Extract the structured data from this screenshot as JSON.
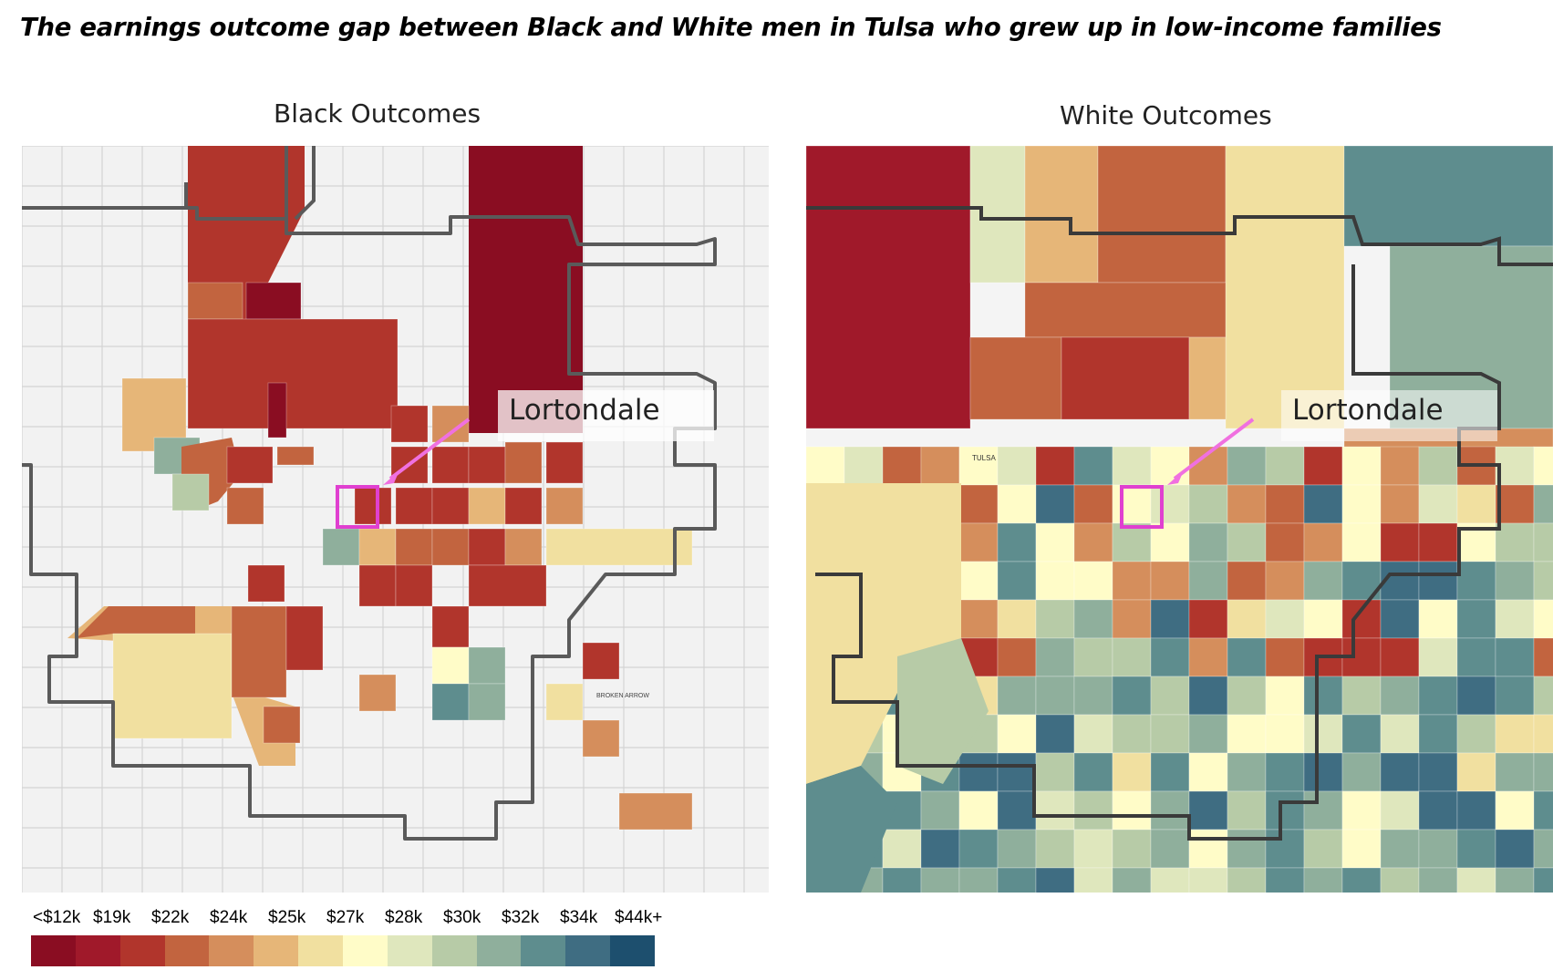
{
  "title": "The earnings outcome gap between Black and White men in Tulsa who grew up in low-income families",
  "panels": {
    "black": {
      "title": "Black Outcomes",
      "callout": "Lortondale"
    },
    "white": {
      "title": "White Outcomes",
      "callout": "Lortondale"
    }
  },
  "map_labels": {
    "tulsa": "TULSA",
    "broken_arrow": "BROKEN ARROW"
  },
  "legend": {
    "labels": [
      "<$12k",
      "$19k",
      "$22k",
      "$24k",
      "$25k",
      "$27k",
      "$28k",
      "$30k",
      "$32k",
      "$34k",
      "$44k+"
    ],
    "colors": [
      "#8a0d22",
      "#a0192a",
      "#b1352c",
      "#c2643f",
      "#d58e5c",
      "#e6b678",
      "#f1e0a0",
      "#fffcc8",
      "#dfe7bd",
      "#b7cba7",
      "#8faf9c",
      "#5e8d8e",
      "#3f6d82",
      "#1d4f6e"
    ]
  },
  "colors": {
    "highlight": "#e040d0",
    "arrow": "#f070e0",
    "background": "#f2f2f2",
    "boundary": "#5a5a5a"
  }
}
